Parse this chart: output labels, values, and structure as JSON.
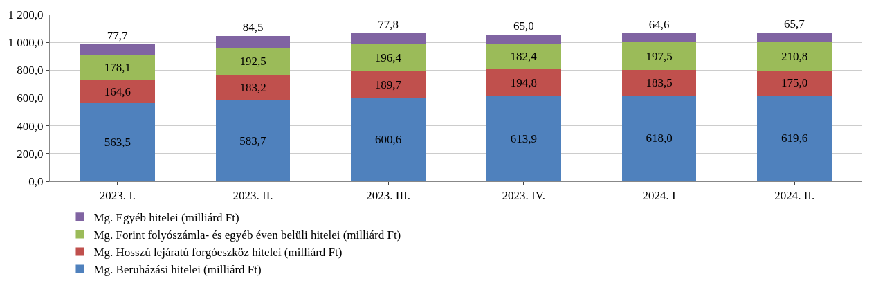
{
  "chart_data": {
    "type": "bar",
    "stacked": true,
    "categories": [
      "2023. I.",
      "2023. II.",
      "2023. III.",
      "2023. IV.",
      "2024. I",
      "2024. II."
    ],
    "series": [
      {
        "name": "Mg. Beruházási hitelei (milliárd Ft)",
        "color": "#4f81bd",
        "values": [
          563.5,
          583.7,
          600.6,
          613.9,
          618.0,
          619.6
        ],
        "value_labels": [
          "563,5",
          "583,7",
          "600,6",
          "613,9",
          "618,0",
          "619,6"
        ]
      },
      {
        "name": "Mg. Hosszú lejáratú forgóeszköz hitelei (milliárd Ft)",
        "color": "#c0504d",
        "values": [
          164.6,
          183.2,
          189.7,
          194.8,
          183.5,
          175.0
        ],
        "value_labels": [
          "164,6",
          "183,2",
          "189,7",
          "194,8",
          "183,5",
          "175,0"
        ]
      },
      {
        "name": "Mg. Forint folyószámla- és egyéb éven belüli hitelei (milliárd Ft)",
        "color": "#9bbb59",
        "values": [
          178.1,
          192.5,
          196.4,
          182.4,
          197.5,
          210.8
        ],
        "value_labels": [
          "178,1",
          "192,5",
          "196,4",
          "182,4",
          "197,5",
          "210,8"
        ]
      },
      {
        "name": "Mg. Egyéb hitelei (milliárd Ft)",
        "color": "#8064a2",
        "values": [
          77.7,
          84.5,
          77.8,
          65.0,
          64.6,
          65.7
        ],
        "value_labels": [
          "77,7",
          "84,5",
          "77,8",
          "65,0",
          "64,6",
          "65,7"
        ]
      }
    ],
    "ylim": [
      0,
      1200
    ],
    "yticks": [
      {
        "value": 0,
        "label": "0,0"
      },
      {
        "value": 200,
        "label": "200,0"
      },
      {
        "value": 400,
        "label": "400,0"
      },
      {
        "value": 600,
        "label": "600,0"
      },
      {
        "value": 800,
        "label": "800,0"
      },
      {
        "value": 1000,
        "label": "1 000,0"
      },
      {
        "value": 1200,
        "label": "1 200,0"
      }
    ],
    "grid": "y",
    "legend": "bottom"
  }
}
